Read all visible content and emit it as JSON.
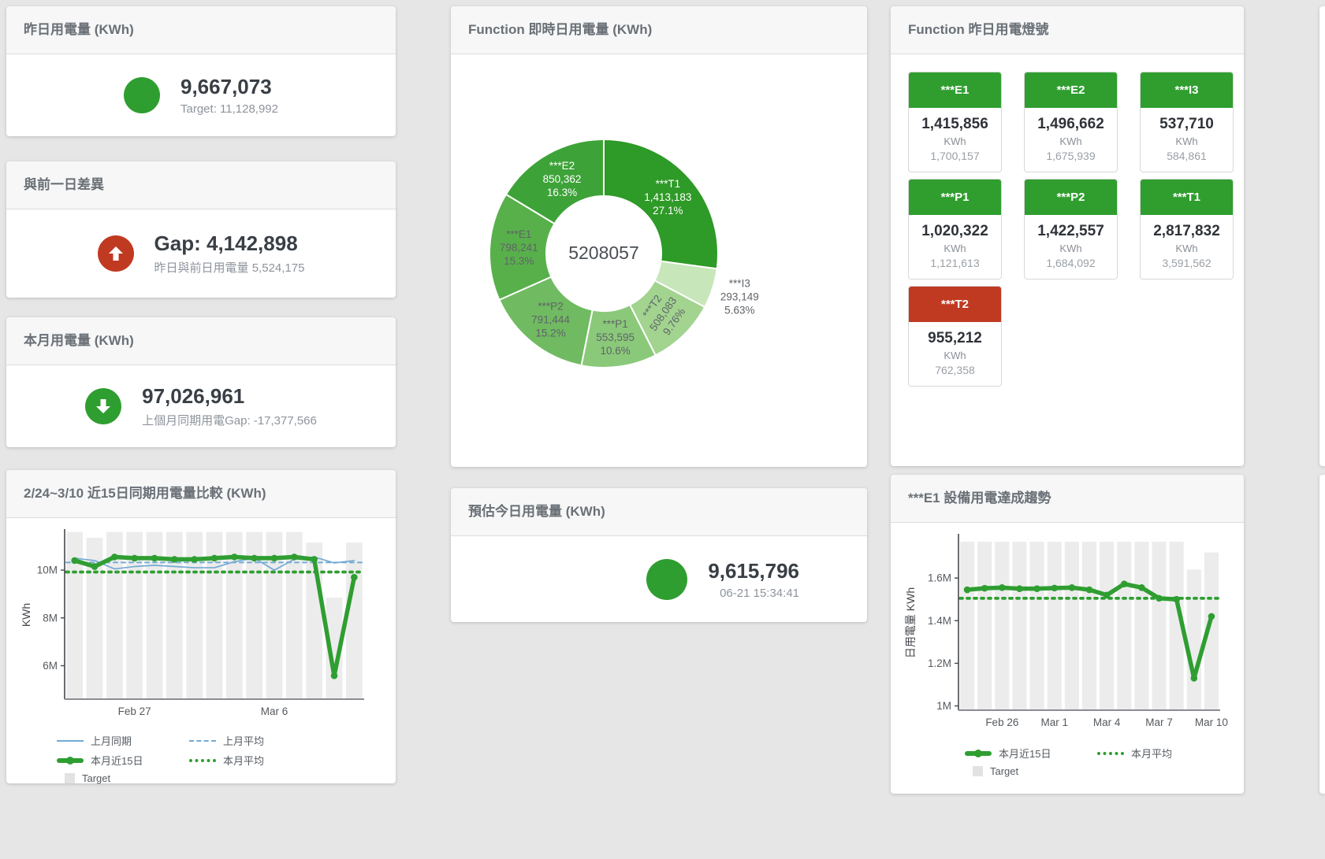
{
  "colors": {
    "green": "#2f9e31",
    "red": "#c03a21",
    "blue": "#73aad4",
    "bar_gray": "#ececec",
    "title_gray": "#6a7077"
  },
  "cards": {
    "yesterday": {
      "title": "昨日用電量 (KWh)",
      "value": "9,667,073",
      "subtitle": "Target: 11,128,992",
      "indicator": "green-circle"
    },
    "gap": {
      "title": "與前一日差異",
      "value": "Gap: 4,142,898",
      "subtitle": "昨日與前日用電量 5,524,175",
      "indicator": "red-up-arrow"
    },
    "month": {
      "title": "本月用電量 (KWh)",
      "value": "97,026,961",
      "subtitle": "上個月同期用電Gap: -17,377,566",
      "indicator": "green-down-arrow"
    },
    "estimate": {
      "title": "預估今日用電量 (KWh)",
      "value": "9,615,796",
      "subtitle": "06-21 15:34:41",
      "indicator": "green-circle"
    },
    "lights": {
      "title": "Function 昨日用電燈號",
      "unit": "KWh",
      "tiles": [
        {
          "label": "***E1",
          "value": "1,415,856",
          "target": "1,700,157",
          "status": "green"
        },
        {
          "label": "***E2",
          "value": "1,496,662",
          "target": "1,675,939",
          "status": "green"
        },
        {
          "label": "***I3",
          "value": "537,710",
          "target": "584,861",
          "status": "green"
        },
        {
          "label": "***P1",
          "value": "1,020,322",
          "target": "1,121,613",
          "status": "green"
        },
        {
          "label": "***P2",
          "value": "1,422,557",
          "target": "1,684,092",
          "status": "green"
        },
        {
          "label": "***T1",
          "value": "2,817,832",
          "target": "3,591,562",
          "status": "green"
        },
        {
          "label": "***T2",
          "value": "955,212",
          "target": "762,358",
          "status": "red"
        }
      ]
    }
  },
  "chart_data": [
    {
      "type": "pie",
      "title": "Function 即時日用電量 (KWh)",
      "center_total": "5208057",
      "slices": [
        {
          "name": "***T1",
          "value": 1413183,
          "value_label": "1,413,183",
          "pct_label": "27.1%",
          "color": "#2e9a27",
          "label_color": "#ffffff"
        },
        {
          "name": "***I3",
          "value": 293149,
          "value_label": "293,149",
          "pct_label": "5.63%",
          "color": "#c7e6ba",
          "label_color": "#5f6368",
          "outside": true
        },
        {
          "name": "***T2",
          "value": 508083,
          "value_label": "508,083",
          "pct_label": "9.76%",
          "color": "#a2d490",
          "label_color": "#5f6368",
          "rotate": -55
        },
        {
          "name": "***P1",
          "value": 553595,
          "value_label": "553,595",
          "pct_label": "10.6%",
          "color": "#8bc97a",
          "label_color": "#5f6368"
        },
        {
          "name": "***P2",
          "value": 791444,
          "value_label": "791,444",
          "pct_label": "15.2%",
          "color": "#70bb61",
          "label_color": "#5f6368"
        },
        {
          "name": "***E1",
          "value": 798241,
          "value_label": "798,241",
          "pct_label": "15.3%",
          "color": "#58b04b",
          "label_color": "#5f6368"
        },
        {
          "name": "***E2",
          "value": 850362,
          "value_label": "850,362",
          "pct_label": "16.3%",
          "color": "#3da338",
          "label_color": "#ffffff"
        }
      ]
    },
    {
      "type": "line",
      "title": "2/24~3/10 近15日同期用電量比較 (KWh)",
      "ylabel": "KWh",
      "unit": "M KWh",
      "ylim": [
        4.6,
        11.65
      ],
      "grid": false,
      "yticks": [
        {
          "v": 10,
          "label": "10M"
        },
        {
          "v": 8,
          "label": "8M"
        },
        {
          "v": 6,
          "label": "6M"
        }
      ],
      "categories": [
        "Feb 24",
        "Feb 25",
        "Feb 26",
        "Feb 27",
        "Feb 28",
        "Mar 1",
        "Mar 2",
        "Mar 3",
        "Mar 4",
        "Mar 5",
        "Mar 6",
        "Mar 7",
        "Mar 8",
        "Mar 9",
        "Mar 10"
      ],
      "xticks": [
        {
          "i": 3,
          "label": "Feb 27"
        },
        {
          "i": 10,
          "label": "Mar 6"
        }
      ],
      "target_bars": {
        "name": "Target",
        "color": "#ececec",
        "values": [
          11.6,
          11.35,
          11.6,
          11.6,
          11.6,
          11.6,
          11.6,
          11.6,
          11.6,
          11.6,
          11.6,
          11.6,
          11.15,
          8.85,
          11.15
        ]
      },
      "series": [
        {
          "name": "上月同期",
          "color": "#73aad4",
          "width": 1.7,
          "values": [
            10.5,
            10.4,
            10.05,
            10.15,
            10.2,
            10.15,
            10.1,
            10.1,
            10.35,
            10.5,
            10.0,
            10.45,
            10.55,
            10.3,
            10.4
          ]
        },
        {
          "name": "上月平均",
          "color": "#73aad4",
          "width": 2,
          "dash": "5 5",
          "const": 10.32
        },
        {
          "name": "本月近15日",
          "color": "#2f9e31",
          "width": 5.5,
          "markers": true,
          "values": [
            10.4,
            10.15,
            10.55,
            10.5,
            10.5,
            10.45,
            10.45,
            10.5,
            10.55,
            10.5,
            10.5,
            10.55,
            10.45,
            5.58,
            9.7
          ]
        },
        {
          "name": "本月平均",
          "color": "#2f9e31",
          "width": 3.8,
          "dash": "3 6",
          "const": 9.92
        }
      ],
      "legend_rows": [
        [
          {
            "label": "上月同期",
            "swatch": "line-blue"
          },
          {
            "label": "上月平均",
            "swatch": "dash-blue"
          }
        ],
        [
          {
            "label": "本月近15日",
            "swatch": "thick-green"
          },
          {
            "label": "本月平均",
            "swatch": "dot-green"
          }
        ],
        [
          {
            "label": "Target",
            "swatch": "square-gray"
          }
        ]
      ]
    },
    {
      "type": "line",
      "title": "***E1 設備用電達成趨勢",
      "ylabel": "日用電量 KWh",
      "unit": "M KWh",
      "ylim": [
        0.98,
        1.8
      ],
      "grid": false,
      "yticks": [
        {
          "v": 1.6,
          "label": "1.6M"
        },
        {
          "v": 1.4,
          "label": "1.4M"
        },
        {
          "v": 1.2,
          "label": "1.2M"
        },
        {
          "v": 1.0,
          "label": "1M"
        }
      ],
      "categories": [
        "Feb 24",
        "Feb 25",
        "Feb 26",
        "Feb 27",
        "Feb 28",
        "Mar 1",
        "Mar 2",
        "Mar 3",
        "Mar 4",
        "Mar 5",
        "Mar 6",
        "Mar 7",
        "Mar 8",
        "Mar 9",
        "Mar 10"
      ],
      "xticks": [
        {
          "i": 2,
          "label": "Feb 26"
        },
        {
          "i": 5,
          "label": "Mar 1"
        },
        {
          "i": 8,
          "label": "Mar 4"
        },
        {
          "i": 11,
          "label": "Mar 7"
        },
        {
          "i": 14,
          "label": "Mar 10"
        }
      ],
      "target_bars": {
        "name": "Target",
        "color": "#ececec",
        "values": [
          1.77,
          1.77,
          1.77,
          1.77,
          1.77,
          1.77,
          1.77,
          1.77,
          1.77,
          1.77,
          1.77,
          1.77,
          1.77,
          1.64,
          1.72
        ]
      },
      "series": [
        {
          "name": "本月近15日",
          "color": "#2f9e31",
          "width": 5.5,
          "markers": true,
          "values": [
            1.545,
            1.552,
            1.555,
            1.55,
            1.55,
            1.553,
            1.555,
            1.545,
            1.52,
            1.572,
            1.555,
            1.505,
            1.5,
            1.13,
            1.42
          ]
        },
        {
          "name": "本月平均",
          "color": "#2f9e31",
          "width": 3.8,
          "dash": "3 6",
          "const": 1.505
        }
      ],
      "legend_rows": [
        [
          {
            "label": "本月近15日",
            "swatch": "thick-green"
          },
          {
            "label": "本月平均",
            "swatch": "dot-green"
          }
        ],
        [
          {
            "label": "Target",
            "swatch": "square-gray"
          }
        ]
      ]
    }
  ]
}
